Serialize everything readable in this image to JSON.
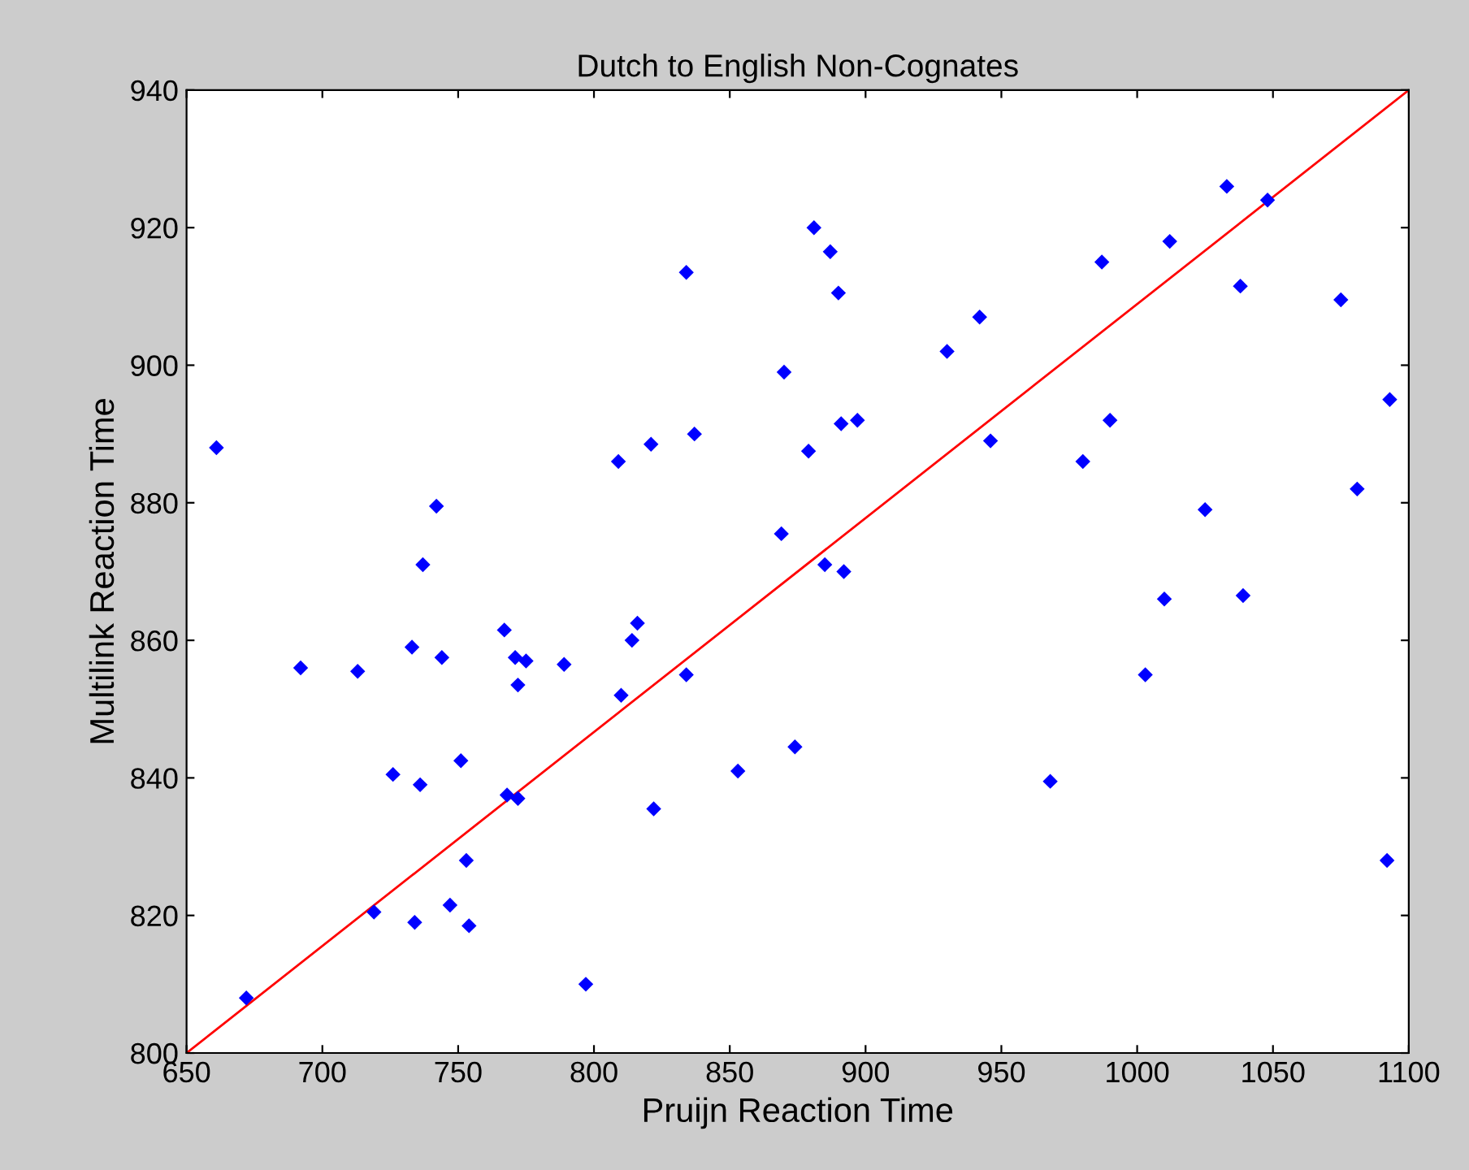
{
  "chart_data": {
    "type": "scatter",
    "title": "Dutch to English Non-Cognates",
    "xlabel": "Pruijn Reaction Time",
    "ylabel": "Multilink Reaction Time",
    "xlim": [
      650,
      1100
    ],
    "ylim": [
      800,
      940
    ],
    "xticks": [
      650,
      700,
      750,
      800,
      850,
      900,
      950,
      1000,
      1050,
      1100
    ],
    "yticks": [
      800,
      820,
      840,
      860,
      880,
      900,
      920,
      940
    ],
    "grid": false,
    "legend": false,
    "marker": "diamond",
    "series": [
      {
        "color": "#0000ff",
        "x": [
          661,
          672,
          692,
          713,
          719,
          726,
          733,
          734,
          736,
          737,
          742,
          744,
          747,
          751,
          753,
          754,
          767,
          768,
          771,
          772,
          772,
          775,
          789,
          797,
          809,
          810,
          814,
          816,
          821,
          822,
          834,
          834,
          837,
          853,
          869,
          870,
          874,
          879,
          881,
          885,
          887,
          890,
          891,
          892,
          897,
          930,
          942,
          946,
          968,
          980,
          987,
          990,
          1003,
          1010,
          1012,
          1025,
          1033,
          1038,
          1039,
          1048,
          1075,
          1081,
          1092,
          1093
        ],
        "values": [
          888,
          808,
          856,
          855.5,
          820.5,
          840.5,
          859,
          819,
          839,
          871,
          879.5,
          857.5,
          821.5,
          842.5,
          828,
          818.5,
          861.5,
          837.5,
          857.5,
          853.5,
          837,
          857,
          856.5,
          810,
          886,
          852,
          860,
          862.5,
          888.5,
          835.5,
          913.5,
          855,
          890,
          841,
          875.5,
          899,
          844.5,
          887.5,
          920,
          871,
          916.5,
          910.5,
          891.5,
          870,
          892,
          902,
          907,
          889,
          839.5,
          886,
          915,
          892,
          855,
          866,
          918,
          879,
          926,
          911.5,
          866.5,
          924,
          909.5,
          882,
          828,
          895
        ]
      },
      {
        "type": "line",
        "color": "#ff0000",
        "marker": "none",
        "line_style": "solid",
        "x": [
          650,
          1100
        ],
        "values": [
          800,
          940
        ]
      }
    ]
  }
}
